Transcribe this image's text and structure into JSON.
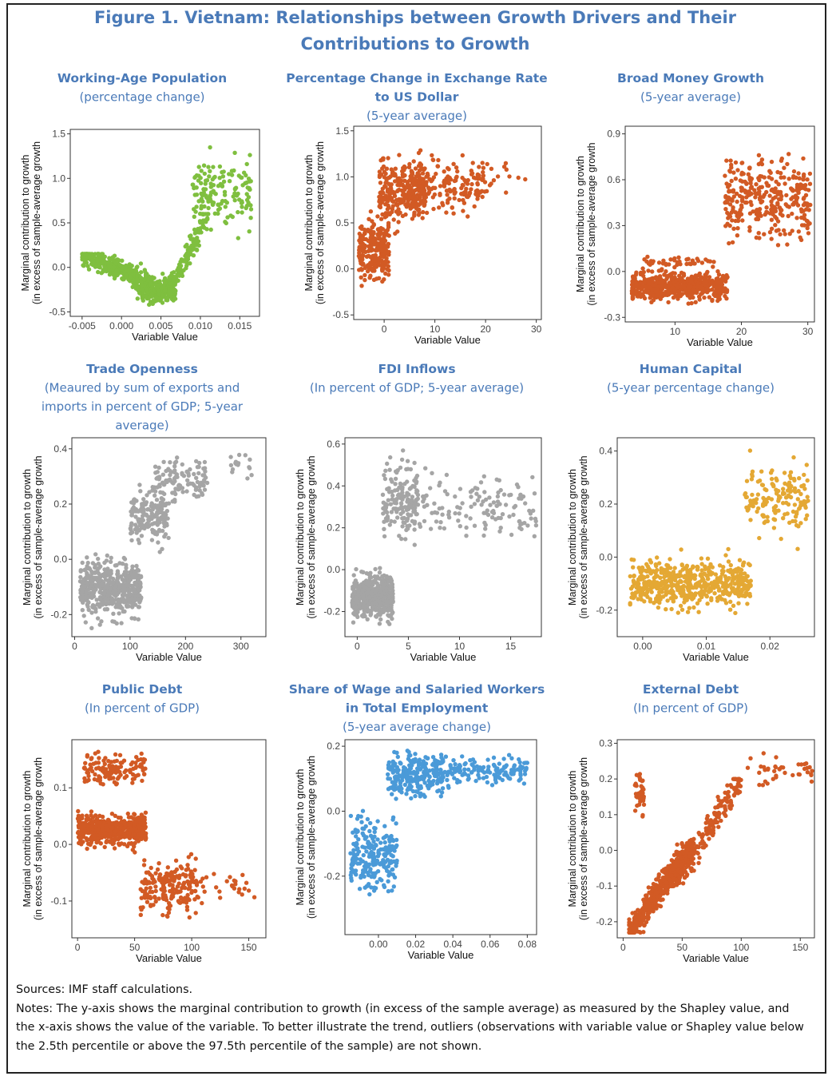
{
  "figure_title": "Figure 1. Vietnam: Relationships between Growth Drivers and Their Contributions to Growth",
  "sources": "Sources: IMF staff calculations.",
  "notes": "Notes: The y-axis shows the marginal contribution to growth (in excess of the sample average) as measured by the Shapley value, and the x-axis shows the value of the variable. To better illustrate the trend, outliers (observations with variable value or Shapley value below the 2.5th percentile or above the 97.5th percentile of the sample) are not shown.",
  "chart_data": [
    {
      "type": "scatter",
      "title_lines": [
        "Working-Age Population"
      ],
      "subtitle_lines": [
        "(percentage change)"
      ],
      "xlabel": "Variable Value",
      "ylabel_lines": [
        "Marginal contribution to growth",
        "(in excess of sample-average growth"
      ],
      "color": "#7fbf3f",
      "xlim": [
        -0.0065,
        0.0175
      ],
      "ylim": [
        -0.55,
        1.55
      ],
      "xticks": [
        -0.005,
        0.0,
        0.005,
        0.01,
        0.015
      ],
      "xtick_labels": [
        "-0.005",
        "0.000",
        "0.005",
        "0.010",
        "0.015"
      ],
      "yticks": [
        -0.5,
        0.0,
        0.5,
        1.0,
        1.5
      ],
      "ytick_labels": [
        "-0.5",
        "0.0",
        "0.5",
        "1.0",
        "1.5"
      ],
      "groups": [
        {
          "n": 380,
          "x": [
            -0.005,
            0.004
          ],
          "y": [
            -0.4,
            0.15
          ],
          "shape": "decline"
        },
        {
          "n": 230,
          "x": [
            0.002,
            0.007
          ],
          "y": [
            -0.5,
            0.0
          ]
        },
        {
          "n": 130,
          "x": [
            0.006,
            0.011
          ],
          "y": [
            -0.3,
            0.6
          ],
          "shape": "rise"
        },
        {
          "n": 150,
          "x": [
            0.009,
            0.0165
          ],
          "y": [
            0.2,
            1.5
          ]
        }
      ]
    },
    {
      "type": "scatter",
      "title_lines": [
        "Percentage Change in Exchange Rate",
        "to US Dollar"
      ],
      "subtitle_lines": [
        "(5-year average)"
      ],
      "xlabel": "Variable Value",
      "ylabel_lines": [
        "Marginal contribution to growth",
        "(in excess of sample-average growth"
      ],
      "color": "#d25a24",
      "xlim": [
        -6,
        31
      ],
      "ylim": [
        -0.55,
        1.55
      ],
      "xticks": [
        0,
        10,
        20,
        30
      ],
      "xtick_labels": [
        "0",
        "10",
        "20",
        "30"
      ],
      "yticks": [
        -0.5,
        0.0,
        0.5,
        1.0,
        1.5
      ],
      "ytick_labels": [
        "-0.5",
        "0.0",
        "0.5",
        "1.0",
        "1.5"
      ],
      "groups": [
        {
          "n": 240,
          "x": [
            -5,
            1
          ],
          "y": [
            -0.3,
            0.7
          ]
        },
        {
          "n": 260,
          "x": [
            -1,
            8
          ],
          "y": [
            0.3,
            1.4
          ]
        },
        {
          "n": 180,
          "x": [
            5,
            20
          ],
          "y": [
            0.4,
            1.45
          ]
        },
        {
          "n": 14,
          "x": [
            20,
            29
          ],
          "y": [
            0.65,
            1.35
          ]
        }
      ]
    },
    {
      "type": "scatter",
      "title_lines": [
        "Broad Money Growth"
      ],
      "subtitle_lines": [
        "(5-year average)"
      ],
      "xlabel": "Variable Value",
      "ylabel_lines": [
        "Marginal contribution to growth",
        "(in excess of sample-average growth"
      ],
      "color": "#d25a24",
      "xlim": [
        2.5,
        31
      ],
      "ylim": [
        -0.33,
        0.95
      ],
      "xticks": [
        10,
        20,
        30
      ],
      "xtick_labels": [
        "10",
        "20",
        "30"
      ],
      "yticks": [
        -0.3,
        0.0,
        0.3,
        0.6,
        0.9
      ],
      "ytick_labels": [
        "-0.3",
        "0.0",
        "0.3",
        "0.6",
        "0.9"
      ],
      "groups": [
        {
          "n": 520,
          "x": [
            3.5,
            18
          ],
          "y": [
            -0.25,
            0.05
          ]
        },
        {
          "n": 40,
          "x": [
            5,
            16
          ],
          "y": [
            0.0,
            0.12
          ]
        },
        {
          "n": 320,
          "x": [
            17.5,
            30.5
          ],
          "y": [
            0.05,
            0.9
          ]
        }
      ]
    },
    {
      "type": "scatter",
      "title_lines": [
        "Trade Openness"
      ],
      "subtitle_lines": [
        "(Meaured by sum of exports and",
        "imports in percent of GDP; 5-year",
        "average)"
      ],
      "xlabel": "Variable Value",
      "ylabel_lines": [
        "Marginal contribution to growth",
        "(in excess of sample-average growth"
      ],
      "color": "#a5a5a5",
      "xlim": [
        -5,
        345
      ],
      "ylim": [
        -0.28,
        0.44
      ],
      "xticks": [
        0,
        100,
        200,
        300
      ],
      "xtick_labels": [
        "0",
        "100",
        "200",
        "300"
      ],
      "yticks": [
        -0.2,
        0.0,
        0.2,
        0.4
      ],
      "ytick_labels": [
        "-0.2",
        "0.0",
        "0.2",
        "0.4"
      ],
      "groups": [
        {
          "n": 520,
          "x": [
            10,
            120
          ],
          "y": [
            -0.27,
            0.05
          ]
        },
        {
          "n": 160,
          "x": [
            100,
            170
          ],
          "y": [
            0.0,
            0.3
          ]
        },
        {
          "n": 110,
          "x": [
            140,
            240
          ],
          "y": [
            0.15,
            0.42
          ]
        },
        {
          "n": 16,
          "x": [
            280,
            330
          ],
          "y": [
            0.25,
            0.42
          ]
        }
      ]
    },
    {
      "type": "scatter",
      "title_lines": [
        "FDI Inflows"
      ],
      "subtitle_lines": [
        "(In percent of GDP; 5-year average)"
      ],
      "xlabel": "Variable Value",
      "ylabel_lines": [
        "Marginal contribution to growth",
        "(in excess of sample-average growth"
      ],
      "color": "#a5a5a5",
      "xlim": [
        -1.2,
        18
      ],
      "ylim": [
        -0.32,
        0.63
      ],
      "xticks": [
        0,
        5,
        10,
        15
      ],
      "xtick_labels": [
        "0",
        "5",
        "10",
        "15"
      ],
      "yticks": [
        -0.2,
        0.0,
        0.2,
        0.4,
        0.6
      ],
      "ytick_labels": [
        "-0.2",
        "0.0",
        "0.2",
        "0.4",
        "0.6"
      ],
      "groups": [
        {
          "n": 480,
          "x": [
            -0.5,
            3.5
          ],
          "y": [
            -0.3,
            0.05
          ]
        },
        {
          "n": 150,
          "x": [
            2.5,
            6
          ],
          "y": [
            0.05,
            0.6
          ]
        },
        {
          "n": 140,
          "x": [
            5,
            17.5
          ],
          "y": [
            0.05,
            0.55
          ]
        }
      ]
    },
    {
      "type": "scatter",
      "title_lines": [
        "Human Capital"
      ],
      "subtitle_lines": [
        "(5-year percentage change)"
      ],
      "xlabel": "Variable Value",
      "ylabel_lines": [
        "Marginal contribution to growth",
        "(in excess of sample-average growth"
      ],
      "color": "#e4a834",
      "xlim": [
        -0.004,
        0.027
      ],
      "ylim": [
        -0.3,
        0.45
      ],
      "xticks": [
        0.0,
        0.01,
        0.02
      ],
      "xtick_labels": [
        "0.00",
        "0.01",
        "0.02"
      ],
      "yticks": [
        -0.2,
        0.0,
        0.2,
        0.4
      ],
      "ytick_labels": [
        "-0.2",
        "0.0",
        "0.2",
        "0.4"
      ],
      "groups": [
        {
          "n": 560,
          "x": [
            -0.002,
            0.017
          ],
          "y": [
            -0.25,
            0.05
          ]
        },
        {
          "n": 150,
          "x": [
            0.016,
            0.026
          ],
          "y": [
            0.0,
            0.43
          ]
        }
      ]
    },
    {
      "type": "scatter",
      "title_lines": [
        "Public Debt"
      ],
      "subtitle_lines": [
        "(In percent of GDP)"
      ],
      "xlabel": "Variable Value",
      "ylabel_lines": [
        "Marginal contribution to growth",
        "(in excess of sample-average growth"
      ],
      "color": "#d25a24",
      "xlim": [
        -5,
        165
      ],
      "ylim": [
        -0.165,
        0.185
      ],
      "xticks": [
        0,
        50,
        100,
        150
      ],
      "xtick_labels": [
        "0",
        "50",
        "100",
        "150"
      ],
      "yticks": [
        -0.1,
        0.0,
        0.1
      ],
      "ytick_labels": [
        "-0.1",
        "0.0",
        "0.1"
      ],
      "groups": [
        {
          "n": 480,
          "x": [
            0,
            60
          ],
          "y": [
            -0.02,
            0.07
          ]
        },
        {
          "n": 130,
          "x": [
            5,
            60
          ],
          "y": [
            0.08,
            0.18
          ]
        },
        {
          "n": 200,
          "x": [
            55,
            105
          ],
          "y": [
            -0.15,
            0.0
          ]
        },
        {
          "n": 30,
          "x": [
            100,
            155
          ],
          "y": [
            -0.15,
            0.01
          ]
        }
      ]
    },
    {
      "type": "scatter",
      "title_lines": [
        "Share of Wage and Salaried Workers",
        "in Total Employment"
      ],
      "subtitle_lines": [
        "(5-year average change)"
      ],
      "xlabel": "Variable Value",
      "ylabel_lines": [
        "Marginal contribution to growth",
        "(in excess of sample-average growth"
      ],
      "color": "#4a9ad8",
      "xlim": [
        -0.018,
        0.085
      ],
      "ylim": [
        -0.38,
        0.22
      ],
      "xticks": [
        0.0,
        0.02,
        0.04,
        0.06,
        0.08
      ],
      "xtick_labels": [
        "0.00",
        "0.02",
        "0.04",
        "0.06",
        "0.08"
      ],
      "yticks": [
        -0.2,
        0.0,
        0.2
      ],
      "ytick_labels": [
        "-0.2",
        "0.0",
        "0.2"
      ],
      "groups": [
        {
          "n": 220,
          "x": [
            -0.015,
            0.01
          ],
          "y": [
            -0.32,
            0.05
          ]
        },
        {
          "n": 230,
          "x": [
            0.005,
            0.035
          ],
          "y": [
            0.0,
            0.21
          ]
        },
        {
          "n": 160,
          "x": [
            0.03,
            0.08
          ],
          "y": [
            0.05,
            0.2
          ]
        }
      ]
    },
    {
      "type": "scatter",
      "title_lines": [
        "External Debt"
      ],
      "subtitle_lines": [
        "(In percent of GDP)"
      ],
      "xlabel": "Variable Value",
      "ylabel_lines": [
        "Marginal contribution to growth",
        "(in excess of sample-average growth"
      ],
      "color": "#d25a24",
      "xlim": [
        -5,
        162
      ],
      "ylim": [
        -0.245,
        0.31
      ],
      "xticks": [
        0,
        50,
        100,
        150
      ],
      "xtick_labels": [
        "0",
        "50",
        "100",
        "150"
      ],
      "yticks": [
        -0.2,
        -0.1,
        0.0,
        0.1,
        0.2,
        0.3
      ],
      "ytick_labels": [
        "-0.2",
        "-0.1",
        "0.0",
        "0.1",
        "0.2",
        "0.3"
      ],
      "groups": [
        {
          "n": 520,
          "x": [
            5,
            60
          ],
          "y": [
            -0.23,
            0.02
          ],
          "shape": "rise"
        },
        {
          "n": 190,
          "x": [
            40,
            100
          ],
          "y": [
            -0.1,
            0.2
          ],
          "shape": "rise"
        },
        {
          "n": 40,
          "x": [
            10,
            18
          ],
          "y": [
            0.05,
            0.28
          ]
        },
        {
          "n": 40,
          "x": [
            105,
            160
          ],
          "y": [
            0.15,
            0.3
          ]
        }
      ]
    }
  ]
}
